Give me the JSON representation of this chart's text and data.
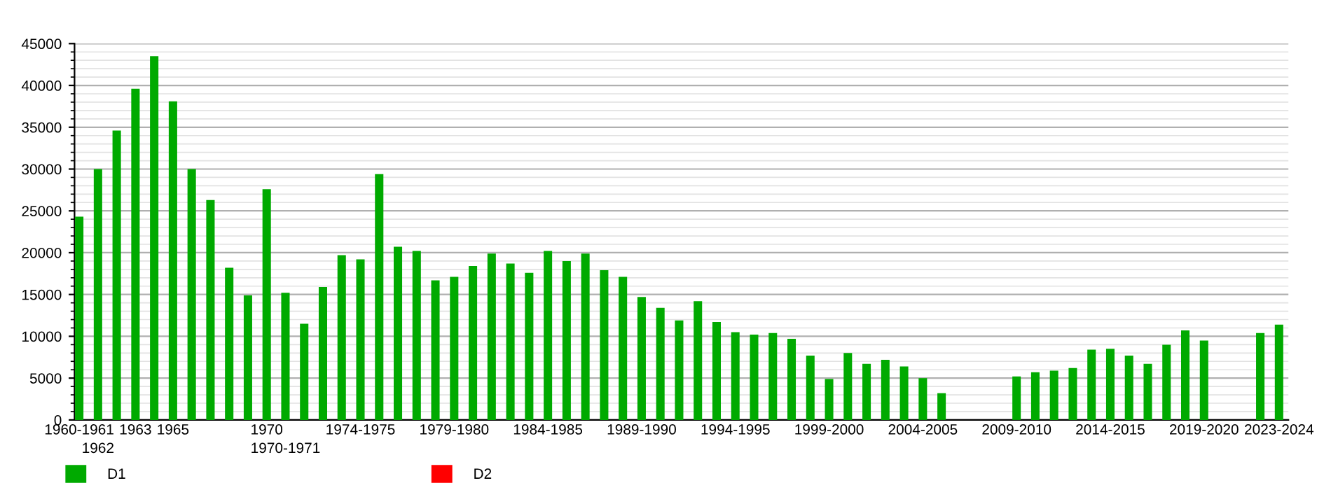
{
  "chart_data": {
    "type": "bar",
    "categories": [
      "1960-1961",
      "1962",
      null,
      "1963",
      null,
      "1965",
      null,
      null,
      null,
      null,
      "1970",
      "1970-1971",
      null,
      null,
      null,
      "1974-1975",
      null,
      null,
      null,
      null,
      "1979-1980",
      null,
      null,
      null,
      null,
      "1984-1985",
      null,
      null,
      null,
      null,
      "1989-1990",
      null,
      null,
      null,
      null,
      "1994-1995",
      null,
      null,
      null,
      null,
      "1999-2000",
      null,
      null,
      null,
      null,
      "2004-2005",
      null,
      null,
      null,
      null,
      "2009-2010",
      null,
      null,
      null,
      null,
      "2014-2015",
      null,
      null,
      null,
      null,
      "2019-2020",
      null,
      null,
      null,
      "2023-2024"
    ],
    "series": [
      {
        "name": "D1",
        "color": "#00aa00",
        "values": [
          24300,
          30000,
          34600,
          39600,
          43500,
          38100,
          30000,
          26300,
          18200,
          14900,
          27600,
          15200,
          11500,
          15900,
          19700,
          19200,
          29400,
          20700,
          20200,
          16700,
          17100,
          18400,
          19900,
          18700,
          17600,
          20200,
          19000,
          19900,
          17900,
          17100,
          14700,
          13400,
          11900,
          14200,
          11700,
          10500,
          10200,
          10400,
          9700,
          7700,
          4900,
          8000,
          6700,
          7200,
          6400,
          5000,
          3200,
          null,
          null,
          null,
          5200,
          5700,
          5900,
          6200,
          8400,
          8500,
          7700,
          6700,
          9000,
          10700,
          9500,
          null,
          null,
          10400,
          11400
        ]
      },
      {
        "name": "D2",
        "color": "#ff0000",
        "values": [
          null,
          null,
          null,
          null,
          null,
          null,
          null,
          null,
          null,
          null,
          null,
          null,
          null,
          null,
          null,
          null,
          null,
          null,
          null,
          null,
          null,
          null,
          null,
          null,
          null,
          null,
          null,
          null,
          null,
          null,
          null,
          null,
          null,
          null,
          null,
          null,
          null,
          null,
          null,
          null,
          null,
          null,
          null,
          null,
          null,
          null,
          null,
          null,
          null,
          null,
          null,
          null,
          null,
          null,
          null,
          null,
          null,
          null,
          null,
          null,
          null,
          null,
          null,
          null,
          null
        ]
      }
    ],
    "ylim": [
      0,
      45000
    ],
    "yticks": [
      0,
      5000,
      10000,
      15000,
      20000,
      25000,
      30000,
      35000,
      40000,
      45000
    ],
    "grid": "y",
    "legend": "bottom left"
  }
}
